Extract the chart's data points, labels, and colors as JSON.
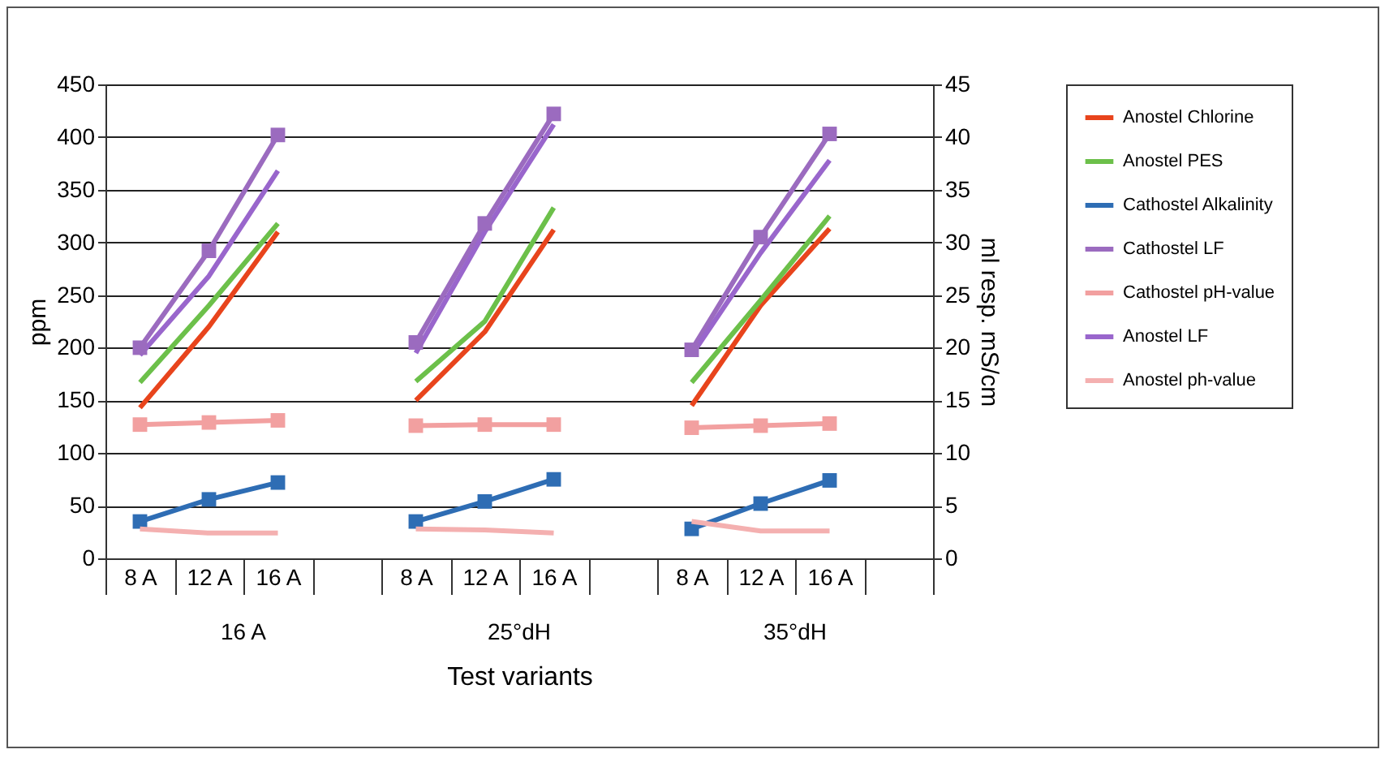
{
  "chart_data": {
    "type": "line",
    "xlabel": "Test variants",
    "ylabel": "ppm",
    "y2label": "ml resp. mS/cm",
    "categories": [
      "8 A",
      "12 A",
      "16 A",
      null,
      "8 A",
      "12 A",
      "16 A",
      null,
      "8 A",
      "12 A",
      "16 A",
      null
    ],
    "annotations": [
      "16 A",
      "25°dH",
      "35°dH"
    ],
    "ylim": [
      0,
      450
    ],
    "yticks": [
      0,
      50,
      100,
      150,
      200,
      250,
      300,
      350,
      400,
      450
    ],
    "y2lim": [
      0,
      45
    ],
    "y2ticks": [
      0,
      5,
      10,
      15,
      20,
      25,
      30,
      35,
      40,
      45
    ],
    "grid": "y",
    "legend": "right",
    "series": [
      {
        "name": "Anostel Chlorine",
        "color": "#e8441c",
        "values": [
          143,
          220,
          310,
          null,
          150,
          215,
          312,
          null,
          145,
          240,
          313,
          null
        ]
      },
      {
        "name": "Anostel PES",
        "color": "#6cc04a",
        "values": [
          167,
          240,
          318,
          null,
          168,
          225,
          333,
          null,
          167,
          245,
          325,
          null
        ]
      },
      {
        "name": "Cathostel Alkalinity",
        "color": "#2e6db4",
        "marker": "square",
        "values": [
          35,
          56,
          72,
          null,
          35,
          54,
          75,
          null,
          28,
          52,
          74,
          null
        ]
      },
      {
        "name": "Cathostel LF",
        "color": "#9b6bbf",
        "marker": "square",
        "axis": "y2",
        "values": [
          20,
          29.2,
          40.2,
          null,
          20.5,
          31.8,
          42.2,
          null,
          19.8,
          30.5,
          40.3,
          null
        ]
      },
      {
        "name": "Cathostel pH-value",
        "color": "#f2a0a0",
        "marker": "square",
        "axis": "y2",
        "values": [
          12.7,
          12.9,
          13.1,
          null,
          12.6,
          12.7,
          12.7,
          null,
          12.4,
          12.6,
          12.8,
          null
        ]
      },
      {
        "name": "Anostel LF",
        "color": "#9966cc",
        "axis": "y2",
        "values": [
          19.3,
          26.8,
          36.8,
          null,
          19.5,
          31,
          41.2,
          null,
          19.3,
          29,
          37.8,
          null
        ]
      },
      {
        "name": "Anostel ph-value",
        "color": "#f4b0b0",
        "axis": "y2",
        "values": [
          2.8,
          2.4,
          2.4,
          null,
          2.8,
          2.7,
          2.4,
          null,
          3.5,
          2.6,
          2.6,
          null
        ]
      }
    ]
  }
}
